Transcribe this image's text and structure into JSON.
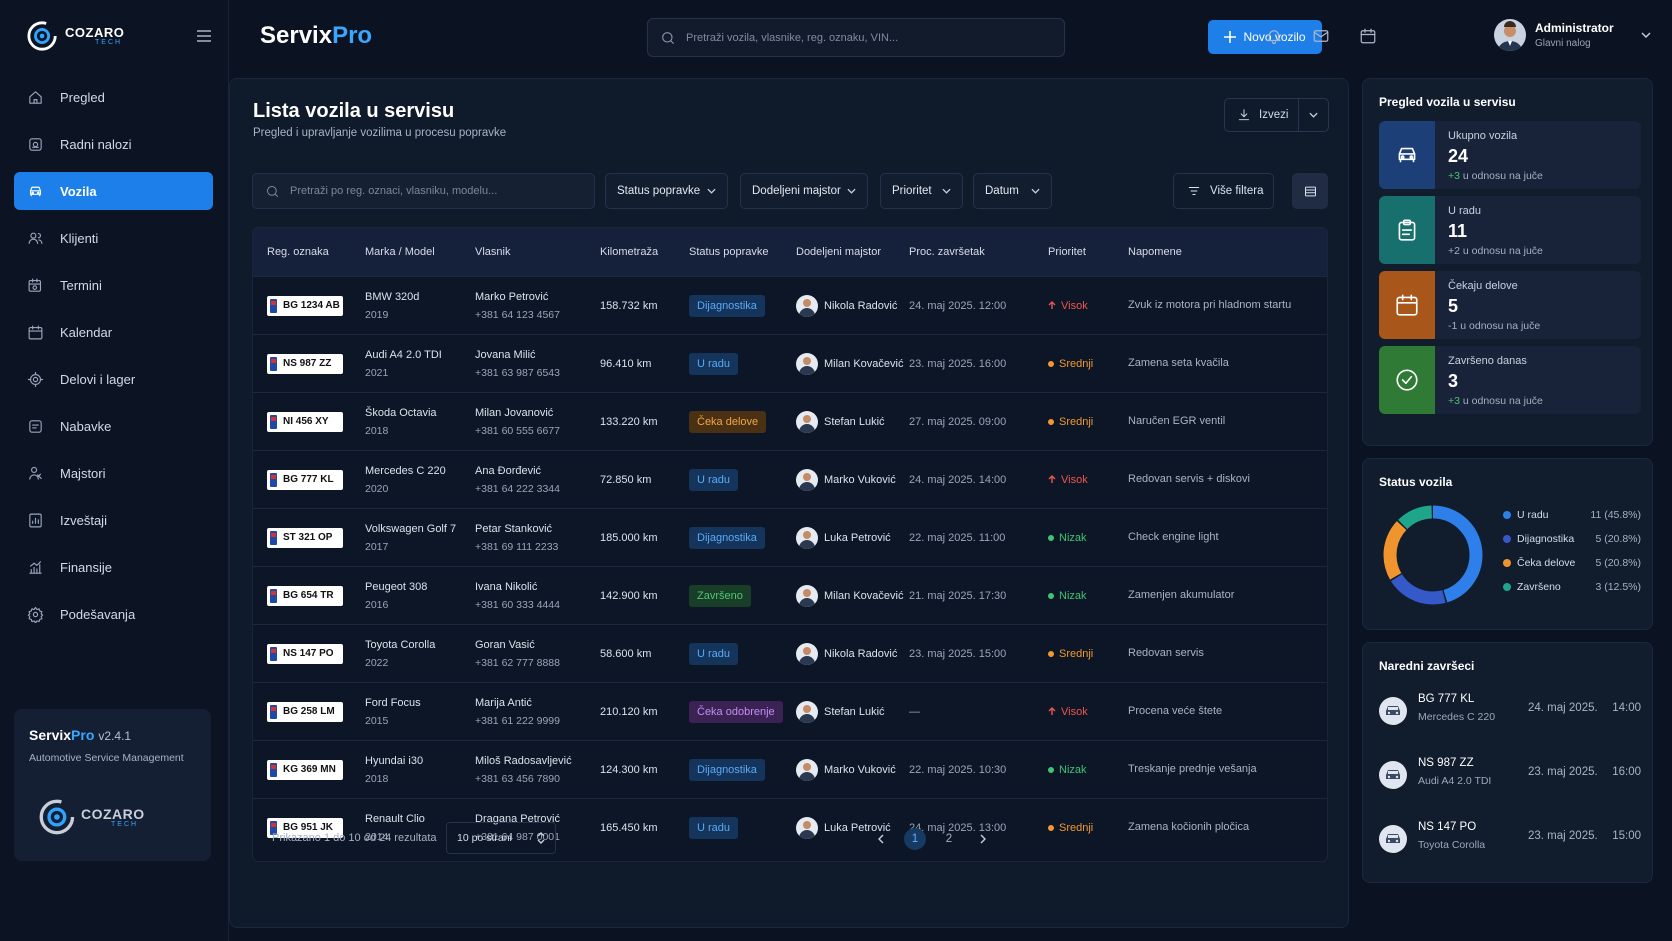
{
  "logo": {
    "name": "COZARO",
    "tag": "TECH"
  },
  "sidebar": {
    "items": [
      {
        "label": "Pregled",
        "icon": "home-icon"
      },
      {
        "label": "Radni nalozi",
        "icon": "wrench-icon"
      },
      {
        "label": "Vozila",
        "icon": "car-icon"
      },
      {
        "label": "Klijenti",
        "icon": "users-icon"
      },
      {
        "label": "Termini",
        "icon": "calendar-clock-icon"
      },
      {
        "label": "Kalendar",
        "icon": "calendar-icon"
      },
      {
        "label": "Delovi i lager",
        "icon": "parts-icon"
      },
      {
        "label": "Nabavke",
        "icon": "cart-icon"
      },
      {
        "label": "Majstori",
        "icon": "mechanic-icon"
      },
      {
        "label": "Izveštaji",
        "icon": "report-icon"
      },
      {
        "label": "Finansije",
        "icon": "finance-icon"
      },
      {
        "label": "Podešavanja",
        "icon": "gear-icon"
      }
    ],
    "active_index": 2,
    "about": {
      "name_a": "Servix",
      "name_b": "Pro",
      "version": "v2.4.1",
      "subtitle": "Automotive Service Management"
    }
  },
  "header": {
    "brand_a": "Servix",
    "brand_b": "Pro",
    "search_placeholder": "Pretraži vozila, vlasnike, reg. oznaku, VIN...",
    "new_button": "Novo vozilo",
    "user_name": "Administrator",
    "user_role": "Glavni nalog"
  },
  "main": {
    "title": "Lista vozila u servisu",
    "subtitle": "Pregled i upravljanje vozilima u procesu popravke",
    "export": "Izvezi",
    "filter_search_placeholder": "Pretraži po reg. oznaci, vlasniku, modelu...",
    "filters": [
      "Status popravke",
      "Dodeljeni majstor",
      "Prioritet",
      "Datum"
    ],
    "more_filters": "Više filtera",
    "columns": [
      "Reg. oznaka",
      "Marka / Model",
      "Vlasnik",
      "Kilometraža",
      "Status popravke",
      "Dodeljeni majstor",
      "Proc. završetak",
      "Prioritet",
      "Napomene"
    ],
    "rows": [
      {
        "plate": "BG 1234 AB",
        "model": "BMW 320d",
        "year": "2019",
        "owner": "Marko Petrović",
        "phone": "+381 64 123 4567",
        "km": "158.732 km",
        "status": "Dijagnostika",
        "status_kind": "blue",
        "mechanic": "Nikola Radović",
        "eta": "24. maj 2025. 12:00",
        "priority": "Visok",
        "priority_kind": "high",
        "note": "Zvuk iz motora pri hladnom startu"
      },
      {
        "plate": "NS 987 ZZ",
        "model": "Audi A4 2.0 TDI",
        "year": "2021",
        "owner": "Jovana Milić",
        "phone": "+381 63 987 6543",
        "km": "96.410 km",
        "status": "U radu",
        "status_kind": "blue",
        "mechanic": "Milan Kovačević",
        "eta": "23. maj 2025. 16:00",
        "priority": "Srednji",
        "priority_kind": "mid",
        "note": "Zamena seta kvačila"
      },
      {
        "plate": "NI 456 XY",
        "model": "Škoda Octavia",
        "year": "2018",
        "owner": "Milan Jovanović",
        "phone": "+381 60 555 6677",
        "km": "133.220 km",
        "status": "Čeka delove",
        "status_kind": "orange",
        "mechanic": "Stefan Lukić",
        "eta": "27. maj 2025. 09:00",
        "priority": "Srednji",
        "priority_kind": "mid",
        "note": "Naručen EGR ventil"
      },
      {
        "plate": "BG 777 KL",
        "model": "Mercedes C 220",
        "year": "2020",
        "owner": "Ana Đorđević",
        "phone": "+381 64 222 3344",
        "km": "72.850 km",
        "status": "U radu",
        "status_kind": "blue",
        "mechanic": "Marko Vuković",
        "eta": "24. maj 2025. 14:00",
        "priority": "Visok",
        "priority_kind": "high",
        "note": "Redovan servis + diskovi"
      },
      {
        "plate": "ST 321 OP",
        "model": "Volkswagen Golf 7",
        "year": "2017",
        "owner": "Petar Stanković",
        "phone": "+381 69 111 2233",
        "km": "185.000 km",
        "status": "Dijagnostika",
        "status_kind": "blue",
        "mechanic": "Luka Petrović",
        "eta": "22. maj 2025. 11:00",
        "priority": "Nizak",
        "priority_kind": "low",
        "note": "Check engine light"
      },
      {
        "plate": "BG 654 TR",
        "model": "Peugeot 308",
        "year": "2016",
        "owner": "Ivana Nikolić",
        "phone": "+381 60 333 4444",
        "km": "142.900 km",
        "status": "Završeno",
        "status_kind": "green",
        "mechanic": "Milan Kovačević",
        "eta": "21. maj 2025. 17:30",
        "priority": "Nizak",
        "priority_kind": "low",
        "note": "Zamenjen akumulator"
      },
      {
        "plate": "NS 147 PO",
        "model": "Toyota Corolla",
        "year": "2022",
        "owner": "Goran Vasić",
        "phone": "+381 62 777 8888",
        "km": "58.600 km",
        "status": "U radu",
        "status_kind": "blue",
        "mechanic": "Nikola Radović",
        "eta": "23. maj 2025. 15:00",
        "priority": "Srednji",
        "priority_kind": "mid",
        "note": "Redovan servis"
      },
      {
        "plate": "BG 258 LM",
        "model": "Ford Focus",
        "year": "2015",
        "owner": "Marija Antić",
        "phone": "+381 61 222 9999",
        "km": "210.120 km",
        "status": "Čeka odobrenje",
        "status_kind": "purple",
        "mechanic": "Stefan Lukić",
        "eta": "—",
        "priority": "Visok",
        "priority_kind": "high",
        "note": "Procena veće štete"
      },
      {
        "plate": "KG 369 MN",
        "model": "Hyundai i30",
        "year": "2018",
        "owner": "Miloš Radosavljević",
        "phone": "+381 63 456 7890",
        "km": "124.300 km",
        "status": "Dijagnostika",
        "status_kind": "blue",
        "mechanic": "Marko Vuković",
        "eta": "22. maj 2025. 10:30",
        "priority": "Nizak",
        "priority_kind": "low",
        "note": "Treskanje prednje vešanja"
      },
      {
        "plate": "BG 951 JK",
        "model": "Renault Clio",
        "year": "2014",
        "owner": "Dragana Petrović",
        "phone": "+381 64 987 0001",
        "km": "165.450 km",
        "status": "U radu",
        "status_kind": "blue",
        "mechanic": "Luka Petrović",
        "eta": "24. maj 2025. 13:00",
        "priority": "Srednji",
        "priority_kind": "mid",
        "note": "Zamena kočionih pločica"
      }
    ],
    "pagination": {
      "info": "Prikazano 1 do 10 od 24 rezultata",
      "page_size": "10 po strani",
      "pages": [
        "1",
        "2"
      ],
      "current": "1"
    }
  },
  "overview": {
    "title": "Pregled vozila u servisu",
    "cards": [
      {
        "label": "Ukupno vozila",
        "value": "24",
        "delta": "+3",
        "delta_text": " u odnosu na juče",
        "color": "#1c3f78",
        "icon": "car-icon"
      },
      {
        "label": "U radu",
        "value": "11",
        "delta": "+2 u odnosu na juče",
        "delta_text": "",
        "color": "#17706e",
        "icon": "clipboard-icon"
      },
      {
        "label": "Čekaju delove",
        "value": "5",
        "delta": "-1 u odnosu na juče",
        "delta_text": "",
        "color": "#a8561a",
        "icon": "calendar-icon"
      },
      {
        "label": "Završeno danas",
        "value": "3",
        "delta": "+3",
        "delta_text": " u odnosu na juče",
        "color": "#2f7a34",
        "icon": "check-circle-icon"
      }
    ]
  },
  "status_chart": {
    "title": "Status vozila",
    "items": [
      {
        "label": "U radu",
        "value": "11 (45.8%)",
        "pct": 45.8,
        "color": "#2f7fea"
      },
      {
        "label": "Dijagnostika",
        "value": "5 (20.8%)",
        "pct": 20.8,
        "color": "#3559c9"
      },
      {
        "label": "Čeka delove",
        "value": "5 (20.8%)",
        "pct": 20.8,
        "color": "#f0952e"
      },
      {
        "label": "Završeno",
        "value": "3 (12.5%)",
        "pct": 12.5,
        "color": "#1fa58a"
      }
    ]
  },
  "upcoming": {
    "title": "Naredni završeci",
    "items": [
      {
        "plate": "BG 777 KL",
        "model": "Mercedes C 220",
        "date": "24. maj 2025.",
        "time": "14:00"
      },
      {
        "plate": "NS 987 ZZ",
        "model": "Audi A4 2.0 TDI",
        "date": "23. maj 2025.",
        "time": "16:00"
      },
      {
        "plate": "NS 147 PO",
        "model": "Toyota Corolla",
        "date": "23. maj 2025.",
        "time": "15:00"
      }
    ]
  }
}
